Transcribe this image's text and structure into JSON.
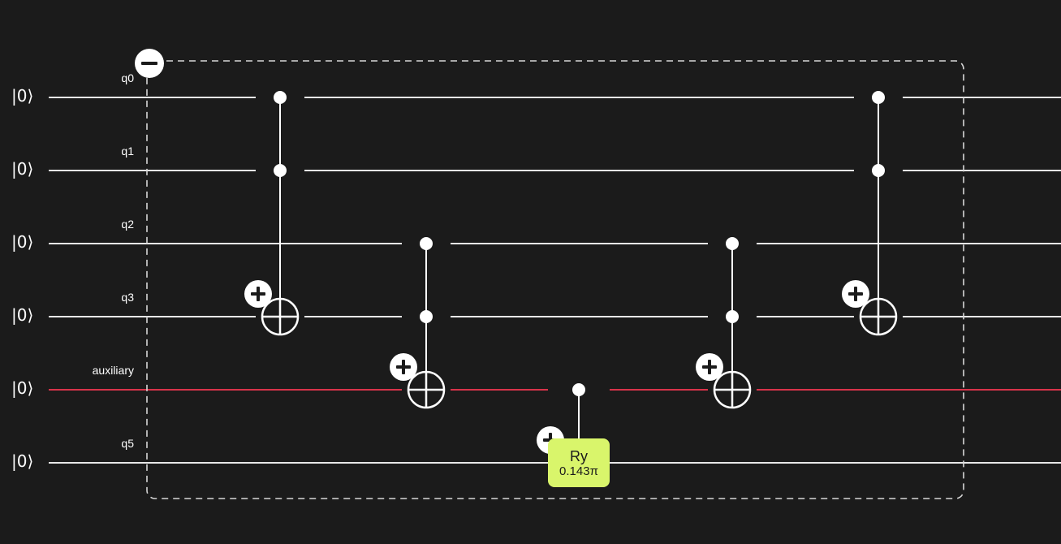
{
  "circuit": {
    "initial_state": "|0⟩",
    "qubits": [
      {
        "label": "q0",
        "color": "#e8e8e8"
      },
      {
        "label": "q1",
        "color": "#e8e8e8"
      },
      {
        "label": "q2",
        "color": "#e8e8e8"
      },
      {
        "label": "q3",
        "color": "#e8e8e8"
      },
      {
        "label": "auxiliary",
        "color": "#d8334a"
      },
      {
        "label": "q5",
        "color": "#e8e8e8"
      }
    ],
    "group": {
      "collapse_icon": "minus-icon",
      "border_style": "dashed"
    },
    "gates": [
      {
        "type": "toffoli",
        "controls": [
          "q0",
          "q1"
        ],
        "target": "q3"
      },
      {
        "type": "toffoli",
        "controls": [
          "q2",
          "q3"
        ],
        "target": "auxiliary"
      },
      {
        "type": "controlled-ry",
        "control": "auxiliary",
        "target": "q5",
        "name": "Ry",
        "parameter": "0.143π"
      },
      {
        "type": "toffoli",
        "controls": [
          "q2",
          "q3"
        ],
        "target": "auxiliary"
      },
      {
        "type": "toffoli",
        "controls": [
          "q0",
          "q1"
        ],
        "target": "q3"
      }
    ],
    "add_control_icon": "plus-icon",
    "colors": {
      "background": "#1b1b1b",
      "wire": "#e8e8e8",
      "auxiliary_wire": "#d8334a",
      "ry_gate": "#d9f56b"
    }
  }
}
